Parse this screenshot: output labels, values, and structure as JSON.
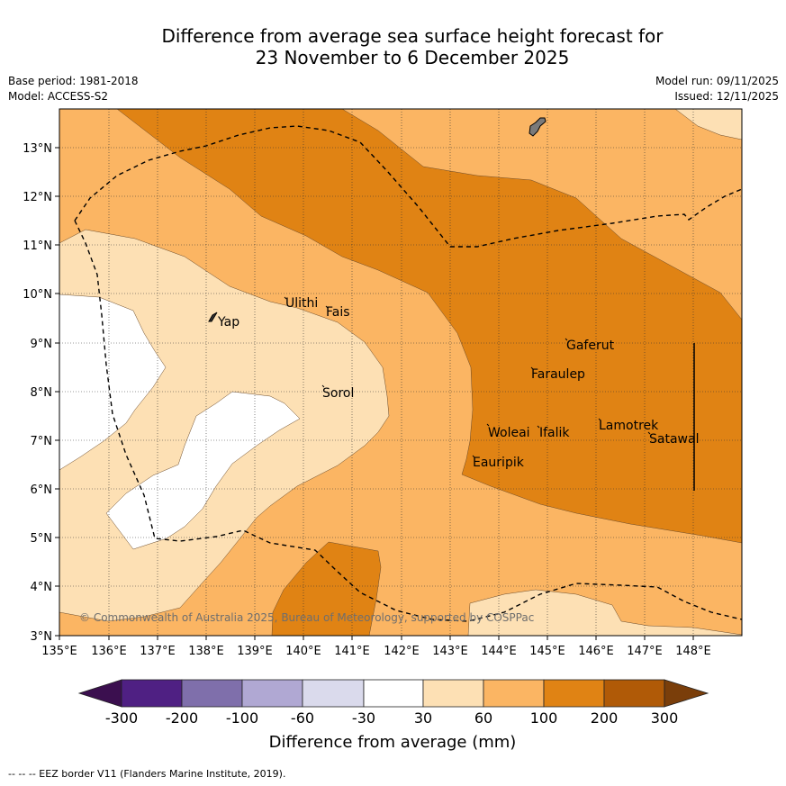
{
  "title_line1": "Difference from average sea surface height forecast for",
  "title_line2": "23 November to 6 December 2025",
  "meta": {
    "base_period": "Base period: 1981-2018",
    "model": "Model: ACCESS-S2",
    "model_run": "Model run: 09/11/2025",
    "issued": "Issued: 12/11/2025"
  },
  "axes": {
    "lon_labels": [
      "135°E",
      "136°E",
      "137°E",
      "138°E",
      "139°E",
      "140°E",
      "141°E",
      "142°E",
      "143°E",
      "144°E",
      "145°E",
      "146°E",
      "147°E",
      "148°E"
    ],
    "lat_labels": [
      "13°N",
      "12°N",
      "11°N",
      "10°N",
      "9°N",
      "8°N",
      "7°N",
      "6°N",
      "5°N",
      "4°N",
      "3°N"
    ]
  },
  "places": {
    "yap": "Yap",
    "ulithi": "Ulithi",
    "fais": "Fais",
    "sorol": "Sorol",
    "gaferut": "Gaferut",
    "faraulep": "Faraulep",
    "woleai": "Woleai",
    "ifalik": "Ifalik",
    "lamotrek": "Lamotrek",
    "satawal": "Satawal",
    "eauripik": "Eauripik"
  },
  "copyright": "© Commonwealth of Australia 2025, Bureau of Meteorology, supported by COSPPac",
  "colorbar": {
    "ticks": [
      "-300",
      "-200",
      "-100",
      "-60",
      "-30",
      "30",
      "60",
      "100",
      "200",
      "300"
    ],
    "label": "Difference from average (mm)",
    "colors": [
      "#3b0f4f",
      "#4f2083",
      "#7f6fab",
      "#b0a8d3",
      "#dadaec",
      "#ffffff",
      "#fde0b4",
      "#fbb563",
      "#e08314",
      "#b05a07",
      "#7a3e0a"
    ]
  },
  "footer": "--  --  -- EEZ border V11 (Flanders Marine Institute, 2019)."
}
